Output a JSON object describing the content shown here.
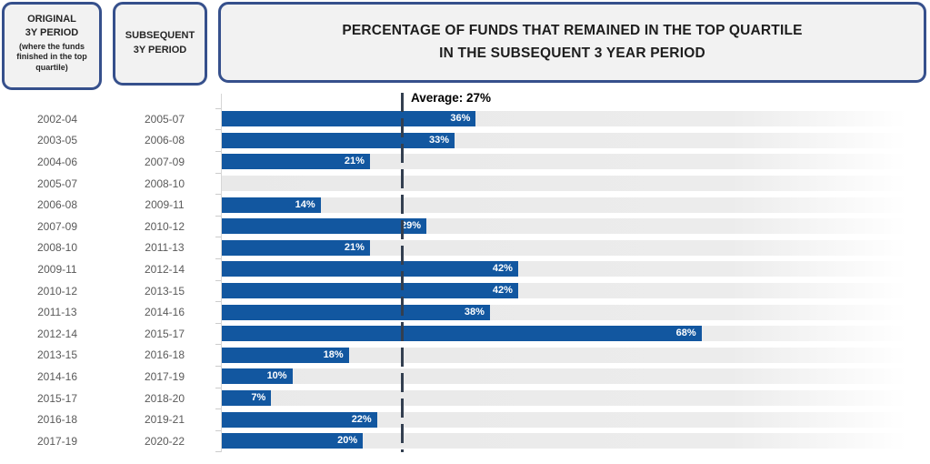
{
  "header": {
    "original_box": {
      "line1": "ORIGINAL",
      "line2": "3Y PERIOD",
      "subtitle": "(where the funds finished in the top quartile)"
    },
    "subsequent_box": {
      "line1": "SUBSEQUENT",
      "line2": "3Y PERIOD"
    },
    "title_box": {
      "line1": "PERCENTAGE OF FUNDS THAT REMAINED IN THE TOP QUARTILE",
      "line2": "IN THE SUBSEQUENT 3 YEAR PERIOD"
    }
  },
  "chart_data": {
    "type": "bar",
    "orientation": "horizontal",
    "title": "PERCENTAGE OF FUNDS THAT REMAINED IN THE TOP QUARTILE IN THE SUBSEQUENT 3 YEAR PERIOD",
    "xlabel": "",
    "ylabel": "",
    "xlim": [
      0,
      100
    ],
    "value_unit": "%",
    "grid": false,
    "legend": false,
    "average": 27,
    "average_label": "Average: 27%",
    "column_headers": {
      "original": "ORIGINAL 3Y PERIOD (where the funds finished in the top quartile)",
      "subsequent": "SUBSEQUENT 3Y PERIOD"
    },
    "rows": [
      {
        "original": "2002-04",
        "subsequent": "2005-07",
        "value": 36,
        "label": "36%"
      },
      {
        "original": "2003-05",
        "subsequent": "2006-08",
        "value": 33,
        "label": "33%"
      },
      {
        "original": "2004-06",
        "subsequent": "2007-09",
        "value": 21,
        "label": "21%"
      },
      {
        "original": "2005-07",
        "subsequent": "2008-10",
        "value": 0,
        "label": ""
      },
      {
        "original": "2006-08",
        "subsequent": "2009-11",
        "value": 14,
        "label": "14%"
      },
      {
        "original": "2007-09",
        "subsequent": "2010-12",
        "value": 29,
        "label": "29%"
      },
      {
        "original": "2008-10",
        "subsequent": "2011-13",
        "value": 21,
        "label": "21%"
      },
      {
        "original": "2009-11",
        "subsequent": "2012-14",
        "value": 42,
        "label": "42%"
      },
      {
        "original": "2010-12",
        "subsequent": "2013-15",
        "value": 42,
        "label": "42%"
      },
      {
        "original": "2011-13",
        "subsequent": "2014-16",
        "value": 38,
        "label": "38%"
      },
      {
        "original": "2012-14",
        "subsequent": "2015-17",
        "value": 68,
        "label": "68%"
      },
      {
        "original": "2013-15",
        "subsequent": "2016-18",
        "value": 18,
        "label": "18%"
      },
      {
        "original": "2014-16",
        "subsequent": "2017-19",
        "value": 10,
        "label": "10%"
      },
      {
        "original": "2015-17",
        "subsequent": "2018-20",
        "value": 7,
        "label": "7%"
      },
      {
        "original": "2016-18",
        "subsequent": "2019-21",
        "value": 22,
        "label": "22%"
      },
      {
        "original": "2017-19",
        "subsequent": "2020-22",
        "value": 20,
        "label": "20%"
      }
    ],
    "colors": {
      "bar": "#1257A0",
      "track": "#EAEAEA",
      "average_line": "#333F50",
      "box_border": "#36508C",
      "box_fill": "#F2F2F2",
      "year_label_text": "#595959"
    }
  }
}
